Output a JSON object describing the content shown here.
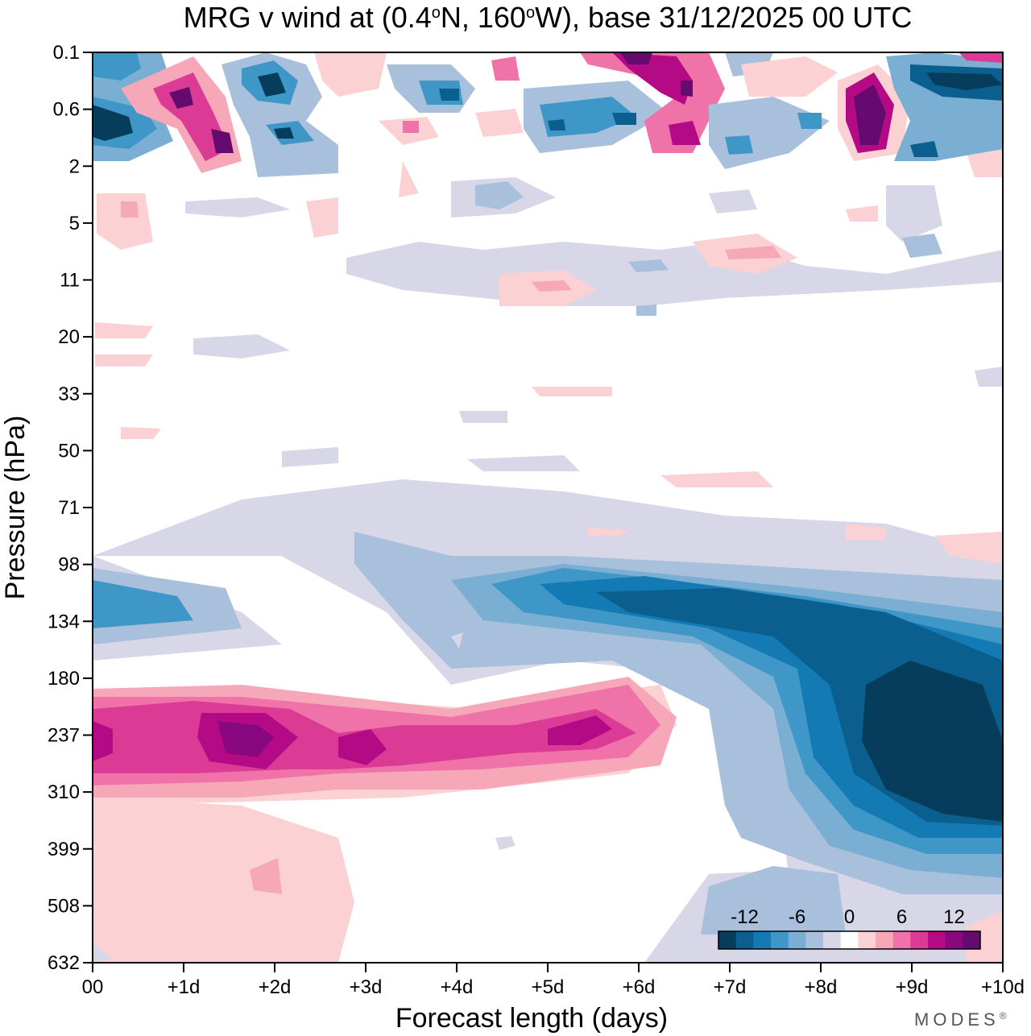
{
  "chart_data": {
    "type": "heatmap",
    "title": "MRG v wind at (0.4°N, 160°W),  base 31/12/2025  00 UTC",
    "title_parts": {
      "prefix": "MRG v wind at (0.4",
      "deg1": "o",
      "mid": "N, 160",
      "deg2": "o",
      "suffix": "W),  base 31/12/2025  00 UTC"
    },
    "xlabel": "Forecast length (days)",
    "ylabel": "Pressure (hPa)",
    "x_ticks": [
      "00",
      "+1d",
      "+2d",
      "+3d",
      "+4d",
      "+5d",
      "+6d",
      "+7d",
      "+8d",
      "+9d",
      "+10d"
    ],
    "x_range_days": [
      0,
      10
    ],
    "y_ticks": [
      "0.1",
      "0.6",
      "2",
      "5",
      "11",
      "20",
      "33",
      "50",
      "71",
      "98",
      "134",
      "180",
      "237",
      "310",
      "399",
      "508",
      "632"
    ],
    "y_range_hPa": [
      0.1,
      632
    ],
    "colorbar": {
      "tick_labels": [
        "-12",
        "-6",
        "0",
        "6",
        "12"
      ],
      "levels": [
        -14,
        -12,
        -10,
        -8,
        -6,
        -4,
        -2,
        0,
        2,
        4,
        6,
        8,
        10,
        12,
        14
      ],
      "colors": [
        "#063d5c",
        "#0a5f8e",
        "#137ab3",
        "#3f97c8",
        "#7aaed3",
        "#a9c0dc",
        "#d7d7e8",
        "#ffffff",
        "#fbd1d3",
        "#f6a8b9",
        "#ef73a9",
        "#dc3b95",
        "#b50a86",
        "#8a087f",
        "#650a6e"
      ]
    },
    "features": [
      {
        "name": "strong easterly-negative core",
        "days": [
          8.5,
          10
        ],
        "pressure_hPa": [
          180,
          350
        ],
        "value": -14
      },
      {
        "name": "negative band",
        "days": [
          4.5,
          8
        ],
        "pressure_hPa": [
          100,
          180
        ],
        "value": -10
      },
      {
        "name": "positive band",
        "days": [
          0,
          6.5
        ],
        "pressure_hPa": [
          190,
          300
        ],
        "value": 10
      },
      {
        "name": "positive max",
        "days": [
          1.5,
          2.2
        ],
        "pressure_hPa": [
          220,
          260
        ],
        "value": 14
      },
      {
        "name": "stratospheric oscillations",
        "days": [
          0,
          10
        ],
        "pressure_hPa": [
          0.1,
          3
        ],
        "value_range": [
          -14,
          14
        ]
      }
    ]
  },
  "branding": {
    "logo": "MODES",
    "logo_mark": "®"
  }
}
